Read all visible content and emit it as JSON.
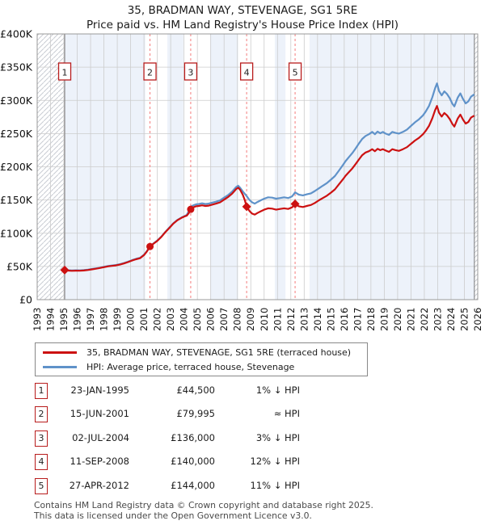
{
  "page": {
    "title": "35, BRADMAN WAY, STEVENAGE, SG1 5RE",
    "subtitle": "Price paid vs. HM Land Registry's House Price Index (HPI)"
  },
  "sales_table": {
    "rows": [
      {
        "num": "1",
        "date": "23-JAN-1995",
        "price": "£44,500",
        "hpi": "1% ↓ HPI"
      },
      {
        "num": "2",
        "date": "15-JUN-2001",
        "price": "£79,995",
        "hpi": "≈ HPI"
      },
      {
        "num": "3",
        "date": "02-JUL-2004",
        "price": "£136,000",
        "hpi": "3% ↓ HPI"
      },
      {
        "num": "4",
        "date": "11-SEP-2008",
        "price": "£140,000",
        "hpi": "12% ↓ HPI"
      },
      {
        "num": "5",
        "date": "27-APR-2012",
        "price": "£144,000",
        "hpi": "11% ↓ HPI"
      }
    ]
  },
  "footer": {
    "line1": "Contains HM Land Registry data © Crown copyright and database right 2025.",
    "line2": "This data is licensed under the Open Government Licence v3.0."
  },
  "chart_data": {
    "type": "line",
    "x_min": 1993,
    "x_max": 2026,
    "y_min": 0,
    "y_max": 400000,
    "y_tick_step": 50000,
    "y_tick_labels": [
      "£0",
      "£50K",
      "£100K",
      "£150K",
      "£200K",
      "£250K",
      "£300K",
      "£350K",
      "£400K"
    ],
    "x_tick_labels": [
      "1993",
      "1994",
      "1995",
      "1996",
      "1997",
      "1998",
      "1999",
      "2000",
      "2001",
      "2002",
      "2003",
      "2004",
      "2005",
      "2006",
      "2007",
      "2008",
      "2009",
      "2010",
      "2011",
      "2012",
      "2013",
      "2014",
      "2015",
      "2016",
      "2017",
      "2018",
      "2019",
      "2020",
      "2021",
      "2022",
      "2023",
      "2024",
      "2025",
      "2026"
    ],
    "data_start": 1995.06,
    "data_end": 2025.75,
    "white_bands": [
      [
        2001.1,
        2002.75
      ],
      [
        2003.95,
        2005.95
      ],
      [
        2008.05,
        2010.8
      ],
      [
        2011.6,
        2013.4
      ]
    ],
    "colors": {
      "plot_bg": "#edf2fa",
      "grid": "#cccccc",
      "border": "#999999",
      "hatch": "#c9ccd3",
      "hatch_edge": "#777777",
      "sale_dash": "#f47c7c",
      "box_border": "#b81c1c"
    },
    "markers": [
      {
        "num": "1",
        "x": 1995.06,
        "price": 44500,
        "shape": "diamond"
      },
      {
        "num": "2",
        "x": 2001.45,
        "price": 79995,
        "shape": "circle"
      },
      {
        "num": "3",
        "x": 2004.5,
        "price": 136000,
        "shape": "circle"
      },
      {
        "num": "4",
        "x": 2008.69,
        "price": 140000,
        "shape": "diamond"
      },
      {
        "num": "5",
        "x": 2012.32,
        "price": 144000,
        "shape": "diamond"
      }
    ],
    "series": [
      {
        "name": "35, BRADMAN WAY, STEVENAGE, SG1 5RE (terraced house)",
        "color": "#cc1111",
        "unit": "GBP_thousands",
        "points": [
          [
            1995.06,
            44.5
          ],
          [
            1995.3,
            43.8
          ],
          [
            1995.6,
            43.4
          ],
          [
            1995.9,
            43.6
          ],
          [
            1996.2,
            43.5
          ],
          [
            1996.5,
            43.9
          ],
          [
            1996.8,
            44.6
          ],
          [
            1997.1,
            45.6
          ],
          [
            1997.4,
            46.6
          ],
          [
            1997.7,
            47.6
          ],
          [
            1998.0,
            48.9
          ],
          [
            1998.3,
            50.1
          ],
          [
            1998.6,
            50.8
          ],
          [
            1998.9,
            51.6
          ],
          [
            1999.2,
            52.8
          ],
          [
            1999.5,
            54.5
          ],
          [
            1999.8,
            56.5
          ],
          [
            2000.1,
            58.8
          ],
          [
            2000.4,
            60.8
          ],
          [
            2000.7,
            62.4
          ],
          [
            2001.0,
            67.0
          ],
          [
            2001.2,
            72.0
          ],
          [
            2001.45,
            80.0
          ],
          [
            2001.7,
            84.0
          ],
          [
            2002.0,
            88.5
          ],
          [
            2002.3,
            94.5
          ],
          [
            2002.6,
            101.5
          ],
          [
            2002.9,
            108.0
          ],
          [
            2003.2,
            114.5
          ],
          [
            2003.5,
            119.5
          ],
          [
            2003.8,
            123.0
          ],
          [
            2004.0,
            125.0
          ],
          [
            2004.2,
            126.5
          ],
          [
            2004.35,
            130.0
          ],
          [
            2004.5,
            136.0
          ],
          [
            2004.7,
            139.0
          ],
          [
            2004.9,
            140.5
          ],
          [
            2005.1,
            141.0
          ],
          [
            2005.35,
            142.0
          ],
          [
            2005.6,
            141.0
          ],
          [
            2005.85,
            141.5
          ],
          [
            2006.1,
            143.0
          ],
          [
            2006.4,
            144.5
          ],
          [
            2006.7,
            146.5
          ],
          [
            2007.0,
            150.5
          ],
          [
            2007.3,
            154.5
          ],
          [
            2007.6,
            159.5
          ],
          [
            2007.9,
            166.5
          ],
          [
            2008.05,
            168.5
          ],
          [
            2008.2,
            165.5
          ],
          [
            2008.4,
            158.0
          ],
          [
            2008.55,
            150.0
          ],
          [
            2008.69,
            140.0
          ],
          [
            2008.9,
            133.5
          ],
          [
            2009.1,
            129.5
          ],
          [
            2009.3,
            128.0
          ],
          [
            2009.5,
            130.5
          ],
          [
            2009.75,
            133.0
          ],
          [
            2010.0,
            135.5
          ],
          [
            2010.3,
            137.5
          ],
          [
            2010.6,
            137.0
          ],
          [
            2010.9,
            135.5
          ],
          [
            2011.2,
            136.5
          ],
          [
            2011.5,
            137.5
          ],
          [
            2011.8,
            136.5
          ],
          [
            2012.1,
            139.0
          ],
          [
            2012.32,
            144.0
          ],
          [
            2012.6,
            140.5
          ],
          [
            2012.9,
            139.5
          ],
          [
            2013.2,
            141.0
          ],
          [
            2013.5,
            142.5
          ],
          [
            2013.8,
            145.5
          ],
          [
            2014.1,
            149.5
          ],
          [
            2014.4,
            153.0
          ],
          [
            2014.7,
            156.5
          ],
          [
            2015.0,
            161.0
          ],
          [
            2015.3,
            166.0
          ],
          [
            2015.6,
            173.5
          ],
          [
            2015.9,
            181.0
          ],
          [
            2016.1,
            186.5
          ],
          [
            2016.35,
            192.0
          ],
          [
            2016.6,
            197.5
          ],
          [
            2016.85,
            204.0
          ],
          [
            2017.1,
            211.0
          ],
          [
            2017.35,
            217.5
          ],
          [
            2017.6,
            221.5
          ],
          [
            2017.85,
            223.5
          ],
          [
            2018.1,
            226.5
          ],
          [
            2018.3,
            223.5
          ],
          [
            2018.5,
            227.0
          ],
          [
            2018.7,
            225.0
          ],
          [
            2018.9,
            226.5
          ],
          [
            2019.1,
            224.5
          ],
          [
            2019.35,
            222.5
          ],
          [
            2019.6,
            226.5
          ],
          [
            2019.85,
            225.0
          ],
          [
            2020.1,
            224.0
          ],
          [
            2020.4,
            226.5
          ],
          [
            2020.7,
            229.5
          ],
          [
            2021.0,
            234.5
          ],
          [
            2021.3,
            239.5
          ],
          [
            2021.6,
            243.5
          ],
          [
            2021.9,
            249.0
          ],
          [
            2022.1,
            254.0
          ],
          [
            2022.35,
            261.5
          ],
          [
            2022.6,
            273.0
          ],
          [
            2022.8,
            285.0
          ],
          [
            2022.95,
            291.5
          ],
          [
            2023.1,
            281.5
          ],
          [
            2023.3,
            275.5
          ],
          [
            2023.5,
            281.0
          ],
          [
            2023.7,
            277.5
          ],
          [
            2023.9,
            272.0
          ],
          [
            2024.1,
            264.5
          ],
          [
            2024.25,
            260.5
          ],
          [
            2024.5,
            272.5
          ],
          [
            2024.7,
            278.5
          ],
          [
            2024.9,
            271.0
          ],
          [
            2025.1,
            265.0
          ],
          [
            2025.3,
            267.5
          ],
          [
            2025.5,
            274.0
          ],
          [
            2025.7,
            276.5
          ]
        ]
      },
      {
        "name": "HPI: Average price, terraced house, Stevenage",
        "color": "#5f92c9",
        "unit": "GBP_thousands",
        "points": [
          [
            1995.06,
            45.0
          ],
          [
            1995.3,
            44.4
          ],
          [
            1995.6,
            44.0
          ],
          [
            1995.9,
            44.2
          ],
          [
            1996.2,
            44.1
          ],
          [
            1996.5,
            44.5
          ],
          [
            1996.8,
            45.2
          ],
          [
            1997.1,
            46.2
          ],
          [
            1997.4,
            47.2
          ],
          [
            1997.7,
            48.2
          ],
          [
            1998.0,
            49.5
          ],
          [
            1998.3,
            50.7
          ],
          [
            1998.6,
            51.4
          ],
          [
            1998.9,
            52.2
          ],
          [
            1999.2,
            53.4
          ],
          [
            1999.5,
            55.1
          ],
          [
            1999.8,
            57.1
          ],
          [
            2000.1,
            59.4
          ],
          [
            2000.4,
            61.4
          ],
          [
            2000.7,
            63.0
          ],
          [
            2001.0,
            67.6
          ],
          [
            2001.2,
            72.6
          ],
          [
            2001.45,
            80.3
          ],
          [
            2001.7,
            84.5
          ],
          [
            2002.0,
            89.0
          ],
          [
            2002.3,
            95.0
          ],
          [
            2002.6,
            102.0
          ],
          [
            2002.9,
            108.5
          ],
          [
            2003.2,
            115.0
          ],
          [
            2003.5,
            120.0
          ],
          [
            2003.8,
            123.5
          ],
          [
            2004.0,
            125.5
          ],
          [
            2004.2,
            127.5
          ],
          [
            2004.35,
            133.0
          ],
          [
            2004.5,
            140.0
          ],
          [
            2004.7,
            142.0
          ],
          [
            2004.9,
            143.5
          ],
          [
            2005.1,
            144.0
          ],
          [
            2005.35,
            145.0
          ],
          [
            2005.6,
            144.0
          ],
          [
            2005.85,
            144.5
          ],
          [
            2006.1,
            146.0
          ],
          [
            2006.4,
            147.5
          ],
          [
            2006.7,
            149.5
          ],
          [
            2007.0,
            153.5
          ],
          [
            2007.3,
            157.5
          ],
          [
            2007.6,
            162.5
          ],
          [
            2007.9,
            169.5
          ],
          [
            2008.05,
            171.5
          ],
          [
            2008.2,
            168.5
          ],
          [
            2008.4,
            163.0
          ],
          [
            2008.69,
            156.0
          ],
          [
            2008.9,
            150.0
          ],
          [
            2009.1,
            146.5
          ],
          [
            2009.3,
            144.5
          ],
          [
            2009.5,
            147.0
          ],
          [
            2009.75,
            149.5
          ],
          [
            2010.0,
            152.0
          ],
          [
            2010.3,
            154.0
          ],
          [
            2010.6,
            153.5
          ],
          [
            2010.9,
            152.0
          ],
          [
            2011.2,
            153.0
          ],
          [
            2011.5,
            154.0
          ],
          [
            2011.8,
            153.0
          ],
          [
            2012.1,
            155.5
          ],
          [
            2012.32,
            161.5
          ],
          [
            2012.6,
            158.0
          ],
          [
            2012.9,
            157.0
          ],
          [
            2013.2,
            158.5
          ],
          [
            2013.5,
            160.0
          ],
          [
            2013.8,
            163.5
          ],
          [
            2014.1,
            167.5
          ],
          [
            2014.4,
            171.5
          ],
          [
            2014.7,
            175.5
          ],
          [
            2015.0,
            180.5
          ],
          [
            2015.3,
            186.0
          ],
          [
            2015.6,
            194.0
          ],
          [
            2015.9,
            202.5
          ],
          [
            2016.1,
            208.5
          ],
          [
            2016.35,
            214.5
          ],
          [
            2016.6,
            220.5
          ],
          [
            2016.85,
            227.5
          ],
          [
            2017.1,
            235.0
          ],
          [
            2017.35,
            242.0
          ],
          [
            2017.6,
            246.5
          ],
          [
            2017.85,
            249.0
          ],
          [
            2018.1,
            252.5
          ],
          [
            2018.3,
            249.0
          ],
          [
            2018.5,
            253.0
          ],
          [
            2018.7,
            250.5
          ],
          [
            2018.9,
            252.5
          ],
          [
            2019.1,
            250.0
          ],
          [
            2019.35,
            248.0
          ],
          [
            2019.6,
            252.5
          ],
          [
            2019.85,
            251.0
          ],
          [
            2020.1,
            250.0
          ],
          [
            2020.4,
            252.5
          ],
          [
            2020.7,
            256.0
          ],
          [
            2021.0,
            261.5
          ],
          [
            2021.3,
            267.0
          ],
          [
            2021.6,
            271.5
          ],
          [
            2021.9,
            277.5
          ],
          [
            2022.1,
            283.0
          ],
          [
            2022.35,
            291.5
          ],
          [
            2022.6,
            304.5
          ],
          [
            2022.8,
            318.0
          ],
          [
            2022.95,
            325.5
          ],
          [
            2023.1,
            314.0
          ],
          [
            2023.3,
            307.5
          ],
          [
            2023.5,
            313.5
          ],
          [
            2023.7,
            309.5
          ],
          [
            2023.9,
            303.5
          ],
          [
            2024.1,
            295.0
          ],
          [
            2024.25,
            291.0
          ],
          [
            2024.5,
            304.0
          ],
          [
            2024.7,
            310.5
          ],
          [
            2024.9,
            302.0
          ],
          [
            2025.1,
            295.5
          ],
          [
            2025.3,
            298.5
          ],
          [
            2025.5,
            305.5
          ],
          [
            2025.7,
            308.5
          ]
        ]
      }
    ]
  }
}
